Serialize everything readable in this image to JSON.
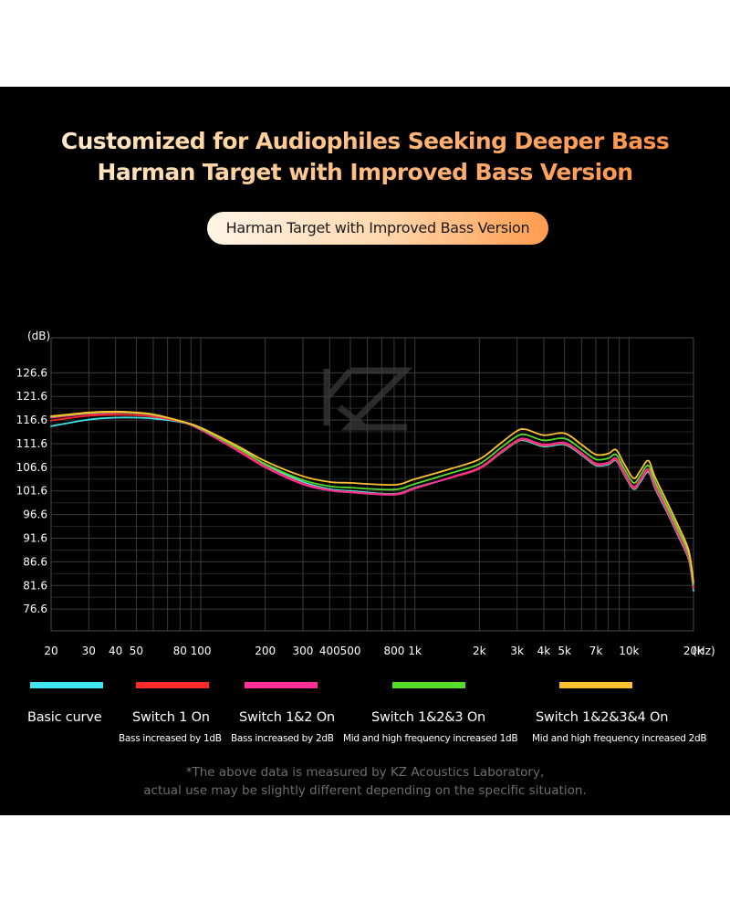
{
  "headline": {
    "line1": "Customized for Audiophiles Seeking Deeper Bass",
    "line2": "Harman Target with Improved Bass Version"
  },
  "pill_label": "Harman Target with Improved Bass Version",
  "legend": [
    {
      "name": "Basic curve",
      "sub": "",
      "color": "#3fe6f0"
    },
    {
      "name": "Switch 1 On",
      "sub": "Bass increased by 1dB",
      "color": "#ff2a2a"
    },
    {
      "name": "Switch 1&2 On",
      "sub": "Bass increased by 2dB",
      "color": "#ff2f9a"
    },
    {
      "name": "Switch 1&2&3 On",
      "sub": "Mid and high frequency increased 1dB",
      "color": "#56dd2a"
    },
    {
      "name": "Switch 1&2&3&4 On",
      "sub": "Mid and high frequency increased 2dB",
      "color": "#ffc22e"
    }
  ],
  "footnote": {
    "line1": "*The above data is measured by KZ Acoustics Laboratory,",
    "line2": "actual use may be slightly different depending on the specific situation."
  },
  "chart_data": {
    "type": "line",
    "xscale": "log",
    "xlim": [
      20,
      20000
    ],
    "ylim": [
      72,
      134
    ],
    "ylabel": "(dB)",
    "xunit": "(Hz)",
    "grid": true,
    "y_ticks": [
      "126.6",
      "121.6",
      "116.6",
      "111.6",
      "106.6",
      "101.6",
      "96.6",
      "91.6",
      "86.6",
      "81.6",
      "76.6"
    ],
    "x_ticks": [
      {
        "v": 20,
        "label": "20"
      },
      {
        "v": 30,
        "label": "30"
      },
      {
        "v": 40,
        "label": "40"
      },
      {
        "v": 50,
        "label": "50"
      },
      {
        "v": 80,
        "label": "80"
      },
      {
        "v": 100,
        "label": "100"
      },
      {
        "v": 200,
        "label": "200"
      },
      {
        "v": 300,
        "label": "300"
      },
      {
        "v": 400,
        "label": "400"
      },
      {
        "v": 500,
        "label": "500"
      },
      {
        "v": 800,
        "label": "800"
      },
      {
        "v": 1000,
        "label": "1k"
      },
      {
        "v": 2000,
        "label": "2k"
      },
      {
        "v": 3000,
        "label": "3k"
      },
      {
        "v": 4000,
        "label": "4k"
      },
      {
        "v": 5000,
        "label": "5k"
      },
      {
        "v": 7000,
        "label": "7k"
      },
      {
        "v": 10000,
        "label": "10k"
      },
      {
        "v": 20000,
        "label": "20k"
      }
    ],
    "series": [
      {
        "name": "Basic curve",
        "color": "#3fe6f0",
        "points": [
          [
            20,
            115.3
          ],
          [
            30,
            116.7
          ],
          [
            40,
            117.1
          ],
          [
            50,
            117.1
          ],
          [
            60,
            116.9
          ],
          [
            80,
            116.2
          ],
          [
            100,
            114.8
          ],
          [
            150,
            110.8
          ],
          [
            200,
            107.2
          ],
          [
            300,
            103.5
          ],
          [
            400,
            102.0
          ],
          [
            500,
            101.6
          ],
          [
            800,
            101.0
          ],
          [
            1000,
            102.3
          ],
          [
            1500,
            104.5
          ],
          [
            2000,
            106.3
          ],
          [
            2500,
            109.5
          ],
          [
            3000,
            112.0
          ],
          [
            3300,
            112.2
          ],
          [
            4000,
            111.0
          ],
          [
            5000,
            111.4
          ],
          [
            6000,
            109.2
          ],
          [
            7000,
            107.0
          ],
          [
            8000,
            107.2
          ],
          [
            8700,
            108.0
          ],
          [
            9500,
            105.0
          ],
          [
            10500,
            102.0
          ],
          [
            11300,
            103.5
          ],
          [
            12300,
            105.6
          ],
          [
            13200,
            102.2
          ],
          [
            15000,
            97.2
          ],
          [
            17000,
            92.0
          ],
          [
            19000,
            87.0
          ],
          [
            20000,
            80.5
          ]
        ]
      },
      {
        "name": "Switch 1 On",
        "color": "#ff2a2a",
        "points": [
          [
            20,
            116.5
          ],
          [
            30,
            117.5
          ],
          [
            40,
            117.7
          ],
          [
            50,
            117.6
          ],
          [
            60,
            117.3
          ],
          [
            80,
            116.3
          ],
          [
            100,
            114.6
          ],
          [
            150,
            110.3
          ],
          [
            200,
            106.8
          ],
          [
            300,
            103.2
          ],
          [
            400,
            101.8
          ],
          [
            500,
            101.4
          ],
          [
            800,
            100.9
          ],
          [
            1000,
            102.2
          ],
          [
            1500,
            104.5
          ],
          [
            2000,
            106.3
          ],
          [
            2500,
            109.6
          ],
          [
            3000,
            112.1
          ],
          [
            3300,
            112.4
          ],
          [
            4000,
            111.2
          ],
          [
            5000,
            111.6
          ],
          [
            6000,
            109.4
          ],
          [
            7000,
            107.2
          ],
          [
            8000,
            107.4
          ],
          [
            8700,
            108.2
          ],
          [
            9500,
            105.2
          ],
          [
            10500,
            102.2
          ],
          [
            11300,
            103.8
          ],
          [
            12300,
            105.9
          ],
          [
            13200,
            102.5
          ],
          [
            15000,
            97.5
          ],
          [
            17000,
            92.3
          ],
          [
            19000,
            87.3
          ],
          [
            20000,
            81.0
          ]
        ]
      },
      {
        "name": "Switch 1&2 On",
        "color": "#ff2f9a",
        "points": [
          [
            20,
            117.1
          ],
          [
            30,
            117.9
          ],
          [
            40,
            118.1
          ],
          [
            50,
            118.0
          ],
          [
            60,
            117.6
          ],
          [
            80,
            116.4
          ],
          [
            100,
            114.5
          ],
          [
            150,
            110.0
          ],
          [
            200,
            106.6
          ],
          [
            300,
            103.0
          ],
          [
            400,
            101.7
          ],
          [
            500,
            101.3
          ],
          [
            800,
            100.8
          ],
          [
            1000,
            102.1
          ],
          [
            1500,
            104.6
          ],
          [
            2000,
            106.5
          ],
          [
            2500,
            109.8
          ],
          [
            3000,
            112.3
          ],
          [
            3300,
            112.6
          ],
          [
            4000,
            111.4
          ],
          [
            5000,
            111.8
          ],
          [
            6000,
            109.6
          ],
          [
            7000,
            107.4
          ],
          [
            8000,
            107.6
          ],
          [
            8700,
            108.5
          ],
          [
            9500,
            105.5
          ],
          [
            10500,
            102.5
          ],
          [
            11300,
            104.1
          ],
          [
            12300,
            106.2
          ],
          [
            13200,
            102.8
          ],
          [
            15000,
            97.8
          ],
          [
            17000,
            92.6
          ],
          [
            19000,
            87.6
          ],
          [
            20000,
            81.3
          ]
        ]
      },
      {
        "name": "Switch 1&2&3 On",
        "color": "#56dd2a",
        "points": [
          [
            20,
            117.3
          ],
          [
            30,
            118.1
          ],
          [
            40,
            118.3
          ],
          [
            50,
            118.1
          ],
          [
            60,
            117.7
          ],
          [
            80,
            116.4
          ],
          [
            100,
            114.8
          ],
          [
            150,
            110.6
          ],
          [
            200,
            107.3
          ],
          [
            300,
            103.9
          ],
          [
            400,
            102.6
          ],
          [
            500,
            102.3
          ],
          [
            800,
            101.9
          ],
          [
            1000,
            103.1
          ],
          [
            1500,
            105.5
          ],
          [
            2000,
            107.3
          ],
          [
            2500,
            110.6
          ],
          [
            3000,
            113.2
          ],
          [
            3300,
            113.5
          ],
          [
            4000,
            112.3
          ],
          [
            5000,
            112.7
          ],
          [
            6000,
            110.4
          ],
          [
            7000,
            108.3
          ],
          [
            8000,
            108.5
          ],
          [
            8700,
            109.3
          ],
          [
            9500,
            106.3
          ],
          [
            10500,
            103.3
          ],
          [
            11300,
            104.9
          ],
          [
            12300,
            107.0
          ],
          [
            13200,
            103.6
          ],
          [
            15000,
            98.5
          ],
          [
            17000,
            93.3
          ],
          [
            19000,
            88.3
          ],
          [
            20000,
            81.8
          ]
        ]
      },
      {
        "name": "Switch 1&2&3&4 On",
        "color": "#ffc22e",
        "points": [
          [
            20,
            117.4
          ],
          [
            30,
            118.2
          ],
          [
            40,
            118.4
          ],
          [
            50,
            118.2
          ],
          [
            60,
            117.8
          ],
          [
            80,
            116.4
          ],
          [
            100,
            115.0
          ],
          [
            150,
            111.0
          ],
          [
            200,
            107.9
          ],
          [
            300,
            104.7
          ],
          [
            400,
            103.5
          ],
          [
            500,
            103.3
          ],
          [
            800,
            102.9
          ],
          [
            1000,
            104.1
          ],
          [
            1500,
            106.4
          ],
          [
            2000,
            108.3
          ],
          [
            2500,
            111.6
          ],
          [
            3000,
            114.3
          ],
          [
            3300,
            114.6
          ],
          [
            4000,
            113.4
          ],
          [
            5000,
            113.8
          ],
          [
            6000,
            111.4
          ],
          [
            7000,
            109.3
          ],
          [
            8000,
            109.5
          ],
          [
            8700,
            110.3
          ],
          [
            9500,
            107.3
          ],
          [
            10500,
            104.3
          ],
          [
            11300,
            105.9
          ],
          [
            12300,
            108.0
          ],
          [
            13200,
            104.6
          ],
          [
            15000,
            99.4
          ],
          [
            17000,
            94.2
          ],
          [
            19000,
            89.0
          ],
          [
            20000,
            82.3
          ]
        ]
      }
    ]
  }
}
